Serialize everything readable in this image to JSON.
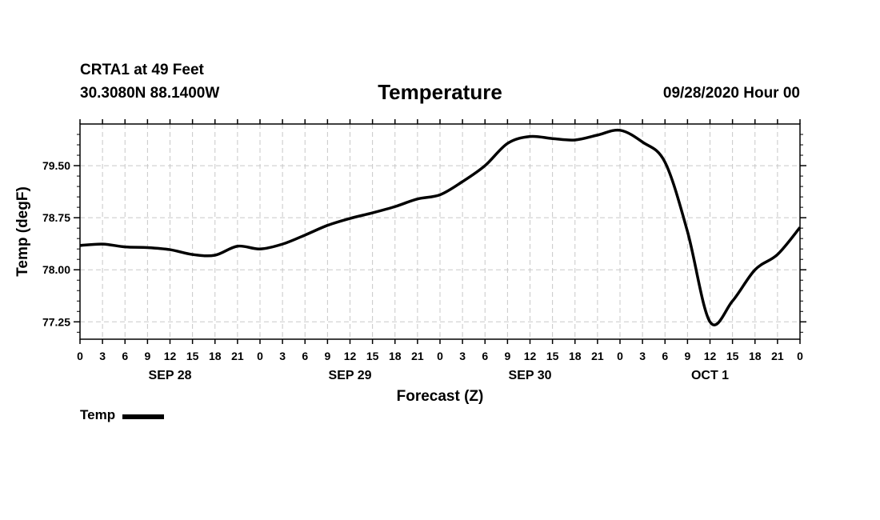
{
  "header": {
    "station": "CRTA1 at 49 Feet",
    "coords": "30.3080N 88.1400W",
    "title": "Temperature",
    "run_time": "09/28/2020 Hour 00"
  },
  "chart_data": {
    "type": "line",
    "title": "Temperature",
    "xlabel": "Forecast (Z)",
    "ylabel": "Temp (degF)",
    "xlim": [
      0,
      96
    ],
    "ylim": [
      77.0,
      80.1
    ],
    "yticks": [
      77.25,
      78.0,
      78.75,
      79.5
    ],
    "ytick_labels": [
      "77.25",
      "78.00",
      "78.75",
      "79.50"
    ],
    "xtick_labels": [
      "0",
      "3",
      "6",
      "9",
      "12",
      "15",
      "18",
      "21",
      "0",
      "3",
      "6",
      "9",
      "12",
      "15",
      "18",
      "21",
      "0",
      "3",
      "6",
      "9",
      "12",
      "15",
      "18",
      "21",
      "0",
      "3",
      "6",
      "9",
      "12",
      "15",
      "18",
      "21",
      "0"
    ],
    "day_labels": [
      {
        "label": "SEP 28",
        "hour": 12
      },
      {
        "label": "SEP 29",
        "hour": 36
      },
      {
        "label": "SEP 30",
        "hour": 60
      },
      {
        "label": "OCT 1",
        "hour": 84
      }
    ],
    "grid": true,
    "legend_position": "bottom-left",
    "series": [
      {
        "name": "Temp",
        "color": "#000000",
        "x": [
          0,
          3,
          6,
          9,
          12,
          15,
          18,
          21,
          24,
          27,
          30,
          33,
          36,
          39,
          42,
          45,
          48,
          51,
          54,
          57,
          60,
          63,
          66,
          69,
          72,
          75,
          78,
          81,
          84,
          87,
          90,
          93,
          96
        ],
        "values": [
          78.35,
          78.37,
          78.33,
          78.32,
          78.29,
          78.22,
          78.21,
          78.34,
          78.3,
          78.37,
          78.5,
          78.64,
          78.74,
          78.82,
          78.91,
          79.02,
          79.08,
          79.27,
          79.5,
          79.82,
          79.92,
          79.89,
          79.87,
          79.94,
          80.01,
          79.84,
          79.55,
          78.55,
          77.25,
          77.55,
          78.0,
          78.22,
          78.61
        ]
      }
    ]
  },
  "legend": {
    "label": "Temp"
  }
}
